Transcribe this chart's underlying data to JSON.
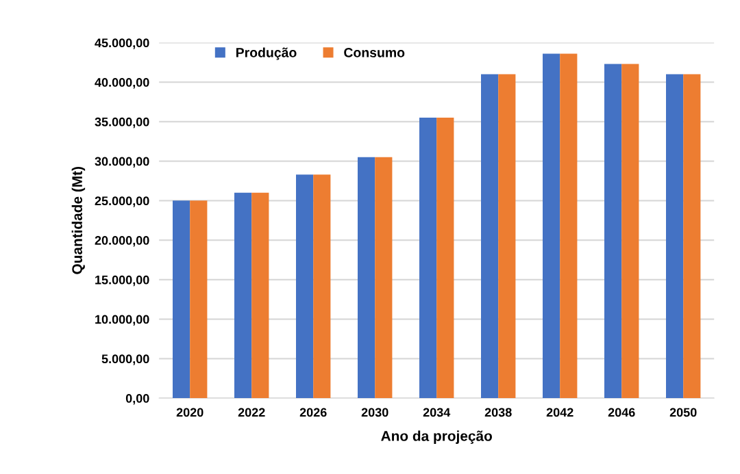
{
  "chart_data": {
    "type": "bar",
    "xlabel": "Ano da projeção",
    "ylabel": "Quantidade (Mt)",
    "categories": [
      "2020",
      "2022",
      "2026",
      "2030",
      "2034",
      "2038",
      "2042",
      "2046",
      "2050"
    ],
    "series": [
      {
        "name": "Produção",
        "color": "#4472c4",
        "values": [
          25000,
          26000,
          28300,
          30500,
          35500,
          41000,
          43600,
          42300,
          41000
        ]
      },
      {
        "name": "Consumo",
        "color": "#ed7d31",
        "values": [
          25000,
          26000,
          28300,
          30500,
          35500,
          41000,
          43600,
          42300,
          41000
        ]
      }
    ],
    "ylim": [
      0,
      45000
    ],
    "yticks": [
      {
        "value": 0,
        "label": "0,00"
      },
      {
        "value": 5000,
        "label": "5.000,00"
      },
      {
        "value": 10000,
        "label": "10.000,00"
      },
      {
        "value": 15000,
        "label": "15.000,00"
      },
      {
        "value": 20000,
        "label": "20.000,00"
      },
      {
        "value": 25000,
        "label": "25.000,00"
      },
      {
        "value": 30000,
        "label": "30.000,00"
      },
      {
        "value": 35000,
        "label": "35.000,00"
      },
      {
        "value": 40000,
        "label": "40.000,00"
      },
      {
        "value": 45000,
        "label": "45.000,00"
      }
    ],
    "grid": "y",
    "legend": "top left"
  }
}
